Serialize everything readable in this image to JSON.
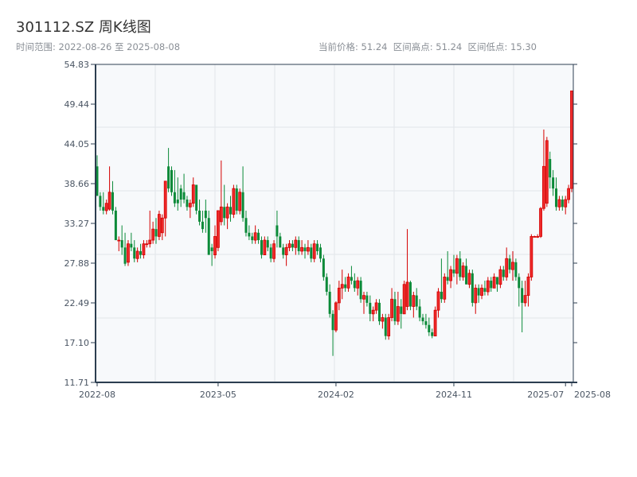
{
  "header": {
    "title": "301112.SZ 周K线图",
    "range_text": "时间范围: 2022-08-26 至 2025-08-08",
    "stats_text": "当前价格: 51.24  区间高点: 51.24  区间低点: 15.30"
  },
  "colors": {
    "up": "#d40000",
    "up_fill": "#ee2a2a",
    "down": "#0a8a38",
    "axis": "#2c3e50",
    "grid": "#e2e5ea",
    "plot_bg": "#f7f9fb"
  },
  "chart_data": {
    "type": "candlestick",
    "title": "301112.SZ 周K线图",
    "start_date": "2022-08-26",
    "end_date": "2025-08-08",
    "current_price": 51.24,
    "range_high": 51.24,
    "range_low": 15.3,
    "ylim": [
      11.71,
      54.83
    ],
    "y_ticks": [
      "54.83",
      "49.44",
      "44.05",
      "38.66",
      "33.27",
      "27.88",
      "22.49",
      "17.10",
      "11.71"
    ],
    "x_ticks": [
      {
        "label": "2022-08",
        "index": 0
      },
      {
        "label": "2023-05",
        "index": 39
      },
      {
        "label": "2024-02",
        "index": 77
      },
      {
        "label": "2024-11",
        "index": 115
      },
      {
        "label": "2025-07",
        "index": 151
      },
      {
        "label": "2025-08",
        "index": 153
      }
    ],
    "ohlc_fields": [
      "open",
      "high",
      "low",
      "close"
    ],
    "ohlc": [
      [
        41,
        42.5,
        37,
        37
      ],
      [
        37,
        37.5,
        35,
        35.5
      ],
      [
        35.5,
        37.5,
        34.5,
        35
      ],
      [
        35,
        36.5,
        34.5,
        36
      ],
      [
        35.2,
        41,
        35,
        37.5
      ],
      [
        37.5,
        39,
        34.5,
        35
      ],
      [
        35,
        35.5,
        31,
        31
      ],
      [
        31,
        31.5,
        29.5,
        31
      ],
      [
        31,
        33,
        29,
        30
      ],
      [
        30,
        32,
        27.5,
        27.8
      ],
      [
        28,
        31,
        27.5,
        30.5
      ],
      [
        30.5,
        32,
        29.5,
        30
      ],
      [
        30,
        31,
        28,
        28.5
      ],
      [
        28.5,
        30,
        28,
        29.5
      ],
      [
        29.5,
        30.5,
        28.5,
        29
      ],
      [
        29,
        31,
        28.5,
        30.5
      ],
      [
        30.5,
        31,
        30,
        30.5
      ],
      [
        30.5,
        35,
        30,
        31
      ],
      [
        31,
        33.5,
        30.5,
        32.5
      ],
      [
        32.5,
        34,
        30.5,
        31.5
      ],
      [
        31.5,
        35,
        31,
        34.5
      ],
      [
        32,
        34.5,
        31,
        34
      ],
      [
        34,
        39,
        31.5,
        39
      ],
      [
        41,
        43.5,
        37.5,
        38
      ],
      [
        40.5,
        41,
        37,
        37.5
      ],
      [
        37.5,
        40.5,
        35.5,
        36
      ],
      [
        36.5,
        39.5,
        35,
        36
      ],
      [
        38,
        38.5,
        35.5,
        36.5
      ],
      [
        37.5,
        40,
        36,
        36.5
      ],
      [
        36.5,
        37,
        35,
        35.5
      ],
      [
        35.5,
        36.5,
        34,
        36
      ],
      [
        36,
        39.5,
        35.5,
        38.5
      ],
      [
        38.5,
        38.5,
        34.5,
        35
      ],
      [
        35,
        36.5,
        33,
        33.5
      ],
      [
        33.5,
        35,
        32,
        32.5
      ],
      [
        35,
        36.5,
        32,
        34
      ],
      [
        34,
        35,
        29,
        29
      ],
      [
        30,
        30.5,
        27.5,
        29.5
      ],
      [
        29,
        33,
        28.5,
        31.5
      ],
      [
        30,
        35,
        29.5,
        35
      ],
      [
        33.5,
        41.8,
        33,
        35.5
      ],
      [
        35.5,
        38.5,
        33,
        34
      ],
      [
        34,
        36,
        32.5,
        35.5
      ],
      [
        35.5,
        37,
        33.5,
        34.5
      ],
      [
        34.5,
        38.5,
        34,
        38
      ],
      [
        38,
        38.5,
        34.5,
        35
      ],
      [
        35,
        38,
        34.5,
        37.5
      ],
      [
        37.5,
        41,
        33.5,
        34
      ],
      [
        34,
        35,
        31.5,
        32
      ],
      [
        32,
        33,
        31,
        31.5
      ],
      [
        31.5,
        32,
        30.5,
        31
      ],
      [
        31,
        33,
        30.5,
        32
      ],
      [
        32,
        32.5,
        30.5,
        31
      ],
      [
        31,
        31.5,
        28.5,
        29
      ],
      [
        29,
        31.5,
        29,
        31
      ],
      [
        31,
        31.5,
        29.5,
        30
      ],
      [
        30,
        30.5,
        28,
        28.5
      ],
      [
        28.5,
        31,
        28,
        30.5
      ],
      [
        33,
        35,
        30,
        31.5
      ],
      [
        31.5,
        32,
        30,
        30
      ],
      [
        30,
        30.5,
        28.5,
        29
      ],
      [
        29,
        30.5,
        27.5,
        30
      ],
      [
        30,
        31,
        29.5,
        30.5
      ],
      [
        30.5,
        31,
        29.5,
        30
      ],
      [
        30,
        31.5,
        29,
        31
      ],
      [
        31,
        31.5,
        29,
        29.5
      ],
      [
        29.5,
        31,
        29,
        30
      ],
      [
        30,
        30.5,
        28.5,
        29.5
      ],
      [
        29.5,
        31,
        29,
        30
      ],
      [
        30,
        30.5,
        28,
        28.5
      ],
      [
        28.5,
        31,
        28,
        30.5
      ],
      [
        30.5,
        31,
        29,
        29.5
      ],
      [
        30,
        30.5,
        28,
        28.5
      ],
      [
        28.5,
        29,
        25.5,
        26
      ],
      [
        26,
        26.5,
        23.5,
        24
      ],
      [
        24,
        25,
        20.5,
        21
      ],
      [
        21,
        21.5,
        15.3,
        18.8
      ],
      [
        18.8,
        22.7,
        18.5,
        22.5
      ],
      [
        22.5,
        25.5,
        21.5,
        24.5
      ],
      [
        24.5,
        27,
        23,
        25
      ],
      [
        25,
        26,
        24,
        24.5
      ],
      [
        24.5,
        26.5,
        24,
        26
      ],
      [
        26,
        27.5,
        25,
        25.5
      ],
      [
        25.5,
        26.5,
        24,
        24.5
      ],
      [
        24.5,
        26,
        23.5,
        25.5
      ],
      [
        25.5,
        26,
        22.5,
        23
      ],
      [
        23,
        24,
        21,
        23.5
      ],
      [
        23.5,
        24,
        22,
        22.5
      ],
      [
        22.5,
        23.5,
        20,
        21
      ],
      [
        21,
        22,
        20,
        21.5
      ],
      [
        21.5,
        23,
        21,
        22.5
      ],
      [
        22.5,
        23,
        19.5,
        20
      ],
      [
        20,
        21,
        19,
        20.5
      ],
      [
        20.5,
        21,
        17.5,
        18
      ],
      [
        18,
        21,
        17.5,
        20.5
      ],
      [
        20.5,
        24.5,
        20,
        23
      ],
      [
        23,
        24,
        19.5,
        20
      ],
      [
        20,
        24,
        19.5,
        22
      ],
      [
        22,
        23,
        19,
        21
      ],
      [
        21,
        25.5,
        21,
        25
      ],
      [
        22,
        32.5,
        21.5,
        25.3
      ],
      [
        25.3,
        25.5,
        21.5,
        22
      ],
      [
        22,
        24,
        20.5,
        23.5
      ],
      [
        23.5,
        24.5,
        21.5,
        22
      ],
      [
        22,
        23,
        20,
        20.5
      ],
      [
        20.5,
        21,
        19.5,
        20
      ],
      [
        20,
        21,
        19,
        19.5
      ],
      [
        19.5,
        20.5,
        18,
        18.5
      ],
      [
        18.5,
        19,
        17.7,
        18
      ],
      [
        18,
        22,
        18,
        21.5
      ],
      [
        21.5,
        24.5,
        20.5,
        24
      ],
      [
        24,
        28.5,
        22.5,
        23
      ],
      [
        23,
        26.5,
        22.5,
        26
      ],
      [
        26,
        29.5,
        25,
        25.5
      ],
      [
        25.5,
        27.5,
        24.5,
        27
      ],
      [
        27,
        29,
        26,
        26.5
      ],
      [
        26.5,
        29,
        25,
        28.5
      ],
      [
        28.5,
        29.5,
        25.5,
        26
      ],
      [
        26,
        28,
        25.5,
        27.5
      ],
      [
        27.5,
        28.5,
        25,
        25
      ],
      [
        25,
        27,
        24.5,
        26.5
      ],
      [
        26.5,
        27,
        22,
        22.5
      ],
      [
        22.5,
        25,
        21,
        24.5
      ],
      [
        24.5,
        25,
        22.5,
        23.5
      ],
      [
        23.5,
        25,
        23,
        24.5
      ],
      [
        24.5,
        25.5,
        23.5,
        24
      ],
      [
        24,
        26,
        23.5,
        25.5
      ],
      [
        25.5,
        26,
        24,
        24.5
      ],
      [
        24.5,
        26.5,
        24.5,
        26
      ],
      [
        26,
        26,
        24,
        25
      ],
      [
        25,
        27.5,
        24.5,
        27
      ],
      [
        27,
        27.5,
        25.5,
        26
      ],
      [
        26,
        30,
        25.5,
        28.5
      ],
      [
        28.5,
        29,
        26.5,
        27
      ],
      [
        27,
        29.5,
        25.5,
        28
      ],
      [
        28,
        28.5,
        25.5,
        26
      ],
      [
        26,
        26.5,
        22,
        24.5
      ],
      [
        24.5,
        25.5,
        18.5,
        22.5
      ],
      [
        22.5,
        25.5,
        22,
        23.5
      ],
      [
        23.5,
        26.5,
        22,
        26
      ],
      [
        26,
        31.8,
        25.5,
        31.5
      ],
      [
        31.5,
        31.6,
        31.4,
        31.5
      ],
      [
        31.5,
        31.8,
        31.3,
        31.5
      ],
      [
        31.5,
        35.5,
        31.3,
        35.3
      ],
      [
        35.3,
        46,
        35,
        41
      ],
      [
        36,
        45,
        35.5,
        44.5
      ],
      [
        42,
        43,
        38,
        39.5
      ],
      [
        39.5,
        40.5,
        37,
        38
      ],
      [
        38,
        39.5,
        35,
        35.5
      ],
      [
        35.5,
        37,
        35,
        36.5
      ],
      [
        36.5,
        37,
        35,
        35.5
      ],
      [
        35.5,
        37,
        34.5,
        36.5
      ],
      [
        36.5,
        38.5,
        36,
        38
      ],
      [
        38,
        51.24,
        37.5,
        51.24
      ]
    ]
  }
}
